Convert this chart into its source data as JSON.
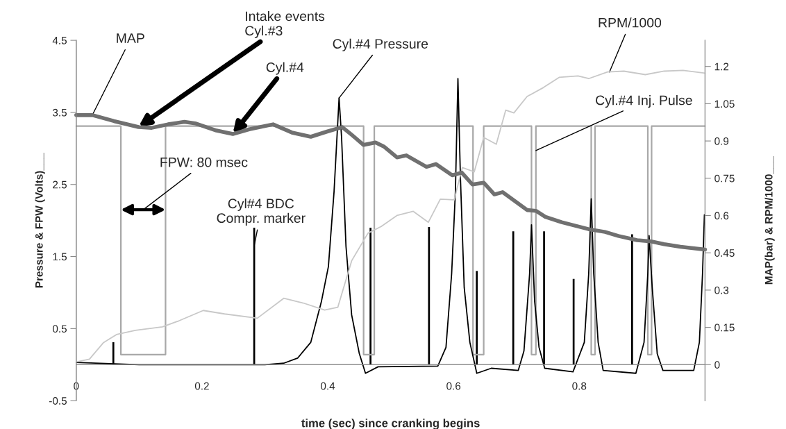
{
  "chart_data": {
    "type": "line",
    "xlabel": "time (sec) since cranking begins",
    "ylabel": "Pressure & FPW (Volts)___",
    "y2label": "MAP(bar) & RPM/1000___",
    "xlim": [
      0,
      1.0
    ],
    "xticks": [
      0,
      0.2,
      0.4,
      0.6,
      0.8
    ],
    "ylim": [
      -0.5,
      4.5
    ],
    "yticks": [
      -0.5,
      0.5,
      1.5,
      2.5,
      3.5,
      4.5
    ],
    "y2lim": [
      -0.145,
      1.305
    ],
    "y2ticks": [
      0,
      0.15,
      0.3,
      0.45,
      0.6,
      0.75,
      0.9,
      1.05,
      1.2
    ],
    "marker": "none",
    "line_style": "solid",
    "series": [
      {
        "color": "#c8c8c8",
        "axis": "y2",
        "x": [
          0,
          0.021,
          0.043,
          0.064,
          0.094,
          0.137,
          0.163,
          0.202,
          0.236,
          0.288,
          0.33,
          0.361,
          0.395,
          0.416,
          0.438,
          0.464,
          0.485,
          0.51,
          0.536,
          0.56,
          0.579,
          0.601,
          0.614,
          0.633,
          0.648,
          0.668,
          0.683,
          0.696,
          0.717,
          0.743,
          0.768,
          0.798,
          0.815,
          0.845,
          0.871,
          0.905,
          0.935,
          0.965,
          1.0
        ],
        "values": [
          0.011,
          0.022,
          0.088,
          0.121,
          0.138,
          0.152,
          0.176,
          0.218,
          0.204,
          0.187,
          0.267,
          0.248,
          0.22,
          0.231,
          0.418,
          0.529,
          0.556,
          0.6,
          0.617,
          0.573,
          0.666,
          0.663,
          0.793,
          0.776,
          0.914,
          0.887,
          1.024,
          1.013,
          1.079,
          1.115,
          1.156,
          1.162,
          1.151,
          1.178,
          1.181,
          1.167,
          1.181,
          1.184,
          1.173
        ]
      },
      {
        "type": "step",
        "color": "#a8a8a8",
        "x": [
          0,
          0.071,
          0.142,
          0.457,
          0.474,
          0.631,
          0.648,
          0.724,
          0.731,
          0.819,
          0.825,
          0.909,
          0.915,
          1.0
        ],
        "values": [
          3.31,
          0.14,
          3.31,
          0.14,
          3.31,
          0.14,
          3.31,
          0.14,
          3.31,
          0.14,
          3.31,
          0.14,
          3.31,
          3.31
        ]
      },
      {
        "type": "bar",
        "color": "#000000",
        "x": [
          0.059,
          0.283,
          0.468,
          0.561,
          0.637,
          0.695,
          0.744,
          0.791,
          0.884
        ],
        "values": [
          0.31,
          1.9,
          1.9,
          1.91,
          1.3,
          1.85,
          1.85,
          1.19,
          1.81
        ]
      },
      {
        "color": "#000000",
        "x": [
          0,
          0.1,
          0.2,
          0.3,
          0.33,
          0.352,
          0.373,
          0.39,
          0.401,
          0.41,
          0.418,
          0.422,
          0.429,
          0.438,
          0.45,
          0.46,
          0.48,
          0.575,
          0.588,
          0.597,
          0.603,
          0.607,
          0.611,
          0.617,
          0.626,
          0.637,
          0.66,
          0.703,
          0.712,
          0.721,
          0.724,
          0.729,
          0.736,
          0.745,
          0.79,
          0.808,
          0.815,
          0.819,
          0.823,
          0.83,
          0.838,
          0.89,
          0.903,
          0.909,
          0.911,
          0.916,
          0.924,
          0.933,
          0.982,
          0.991,
          0.996,
          0.999
        ],
        "values": [
          0.03,
          0,
          0,
          0,
          0.02,
          0.09,
          0.31,
          0.88,
          1.36,
          2.4,
          3.7,
          3.15,
          1.64,
          0.69,
          0.16,
          -0.12,
          -0.03,
          -0.02,
          0.24,
          1.26,
          2.4,
          3.97,
          2.59,
          1.07,
          0.31,
          -0.12,
          -0.05,
          -0.08,
          0.19,
          1.26,
          1.94,
          0.88,
          0.24,
          -0.05,
          -0.1,
          0.31,
          1.26,
          2.3,
          1.26,
          0.31,
          -0.08,
          -0.12,
          0.31,
          1.26,
          1.79,
          1.07,
          0.15,
          -0.08,
          -0.08,
          0.31,
          1.26,
          2.08
        ]
      },
      {
        "color": "#707070",
        "axis": "y2",
        "x": [
          0,
          0.026,
          0.06,
          0.099,
          0.12,
          0.146,
          0.172,
          0.189,
          0.223,
          0.249,
          0.275,
          0.313,
          0.343,
          0.373,
          0.399,
          0.423,
          0.438,
          0.457,
          0.476,
          0.489,
          0.51,
          0.525,
          0.557,
          0.572,
          0.598,
          0.613,
          0.63,
          0.648,
          0.665,
          0.678,
          0.717,
          0.731,
          0.746,
          0.772,
          0.815,
          0.841,
          0.862,
          0.892,
          0.914,
          0.935,
          0.961,
          1.0
        ],
        "values": [
          1.004,
          1.004,
          0.98,
          0.956,
          0.953,
          0.967,
          0.977,
          0.971,
          0.942,
          0.928,
          0.947,
          0.967,
          0.934,
          0.917,
          0.938,
          0.956,
          0.925,
          0.884,
          0.894,
          0.878,
          0.834,
          0.842,
          0.796,
          0.807,
          0.762,
          0.773,
          0.725,
          0.732,
          0.685,
          0.694,
          0.622,
          0.619,
          0.595,
          0.573,
          0.545,
          0.534,
          0.518,
          0.501,
          0.496,
          0.485,
          0.474,
          0.463
        ]
      }
    ],
    "annotations": [
      {
        "text": "MAP",
        "x": 0.026,
        "y": 3.47
      },
      {
        "text": "Intake events\nCyl.#3",
        "x": 0.099,
        "y": 3.3
      },
      {
        "text": "Cyl.#4",
        "x": 0.249,
        "y": 3.2
      },
      {
        "text": "Cyl.#4 Pressure",
        "x": 0.418,
        "y": 3.7
      },
      "FPW: 80 msec",
      {
        "text": "Cyl#4 BDC\nCompr. marker",
        "x": 0.283,
        "y": 1.65
      },
      {
        "text": "RPM/1000",
        "x": 0.848,
        "y": 4.06
      },
      {
        "text": "Cyl.#4 Inj. Pulse",
        "x": 0.731,
        "y": 2.97
      }
    ]
  }
}
